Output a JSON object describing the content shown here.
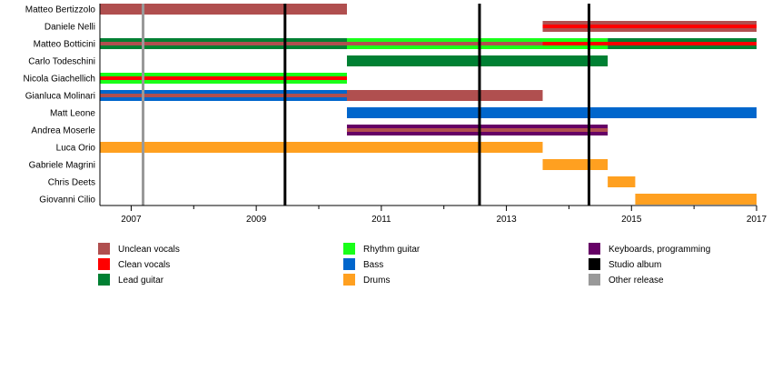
{
  "chart_data": {
    "type": "timeline",
    "xlim": [
      2006.5,
      2017.0
    ],
    "x_ticks": [
      2007,
      2009,
      2011,
      2013,
      2015,
      2017
    ],
    "roles": {
      "unclean": {
        "label": "Unclean vocals",
        "color": "#B04F4F"
      },
      "clean": {
        "label": "Clean vocals",
        "color": "#FF0000"
      },
      "lead": {
        "label": "Lead guitar",
        "color": "#008033"
      },
      "rhythm": {
        "label": "Rhythm guitar",
        "color": "#19FF19"
      },
      "bass": {
        "label": "Bass",
        "color": "#0066CC"
      },
      "drums": {
        "label": "Drums",
        "color": "#FFA020"
      },
      "keys": {
        "label": "Keyboards, programming",
        "color": "#660066"
      },
      "studio": {
        "label": "Studio album",
        "color": "#000000"
      },
      "other": {
        "label": "Other release",
        "color": "#999999"
      }
    },
    "legend_order": [
      [
        "unclean",
        "clean",
        "lead"
      ],
      [
        "rhythm",
        "bass",
        "drums"
      ],
      [
        "keys",
        "studio",
        "other"
      ]
    ],
    "members": [
      {
        "name": "Matteo Bertizzolo",
        "periods": [
          {
            "start": 2006.5,
            "end": 2010.45,
            "role": "unclean"
          }
        ]
      },
      {
        "name": "Daniele Nelli",
        "periods": [
          {
            "start": 2013.58,
            "end": 2017.0,
            "role": "unclean",
            "inner": "clean"
          }
        ]
      },
      {
        "name": "Matteo Botticini",
        "periods": [
          {
            "start": 2006.5,
            "end": 2010.45,
            "role": "lead",
            "inner": "unclean"
          },
          {
            "start": 2010.45,
            "end": 2013.58,
            "role": "rhythm",
            "inner": "unclean"
          },
          {
            "start": 2013.58,
            "end": 2014.62,
            "role": "rhythm",
            "inner": "clean"
          },
          {
            "start": 2014.62,
            "end": 2017.0,
            "role": "lead",
            "inner": "clean"
          }
        ]
      },
      {
        "name": "Carlo Todeschini",
        "periods": [
          {
            "start": 2010.45,
            "end": 2014.62,
            "role": "lead"
          }
        ]
      },
      {
        "name": "Nicola Giachellich",
        "periods": [
          {
            "start": 2006.5,
            "end": 2010.45,
            "role": "rhythm",
            "inner": "clean"
          }
        ]
      },
      {
        "name": "Gianluca Molinari",
        "periods": [
          {
            "start": 2006.5,
            "end": 2010.45,
            "role": "bass",
            "inner": "unclean"
          },
          {
            "start": 2010.45,
            "end": 2013.58,
            "role": "unclean"
          }
        ]
      },
      {
        "name": "Matt Leone",
        "periods": [
          {
            "start": 2010.45,
            "end": 2017.0,
            "role": "bass"
          }
        ]
      },
      {
        "name": "Andrea Moserle",
        "periods": [
          {
            "start": 2010.45,
            "end": 2014.62,
            "role": "keys",
            "inner": "unclean"
          }
        ]
      },
      {
        "name": "Luca Orio",
        "periods": [
          {
            "start": 2006.5,
            "end": 2013.58,
            "role": "drums"
          }
        ]
      },
      {
        "name": "Gabriele Magrini",
        "periods": [
          {
            "start": 2013.58,
            "end": 2014.62,
            "role": "drums"
          }
        ]
      },
      {
        "name": "Chris Deets",
        "periods": [
          {
            "start": 2014.62,
            "end": 2015.06,
            "role": "drums"
          }
        ]
      },
      {
        "name": "Giovanni Cilio",
        "periods": [
          {
            "start": 2015.06,
            "end": 2017.0,
            "role": "drums"
          }
        ]
      }
    ],
    "releases": [
      {
        "year": 2007.19,
        "type": "other"
      },
      {
        "year": 2009.46,
        "type": "studio"
      },
      {
        "year": 2012.57,
        "type": "studio"
      },
      {
        "year": 2014.32,
        "type": "studio"
      }
    ]
  }
}
